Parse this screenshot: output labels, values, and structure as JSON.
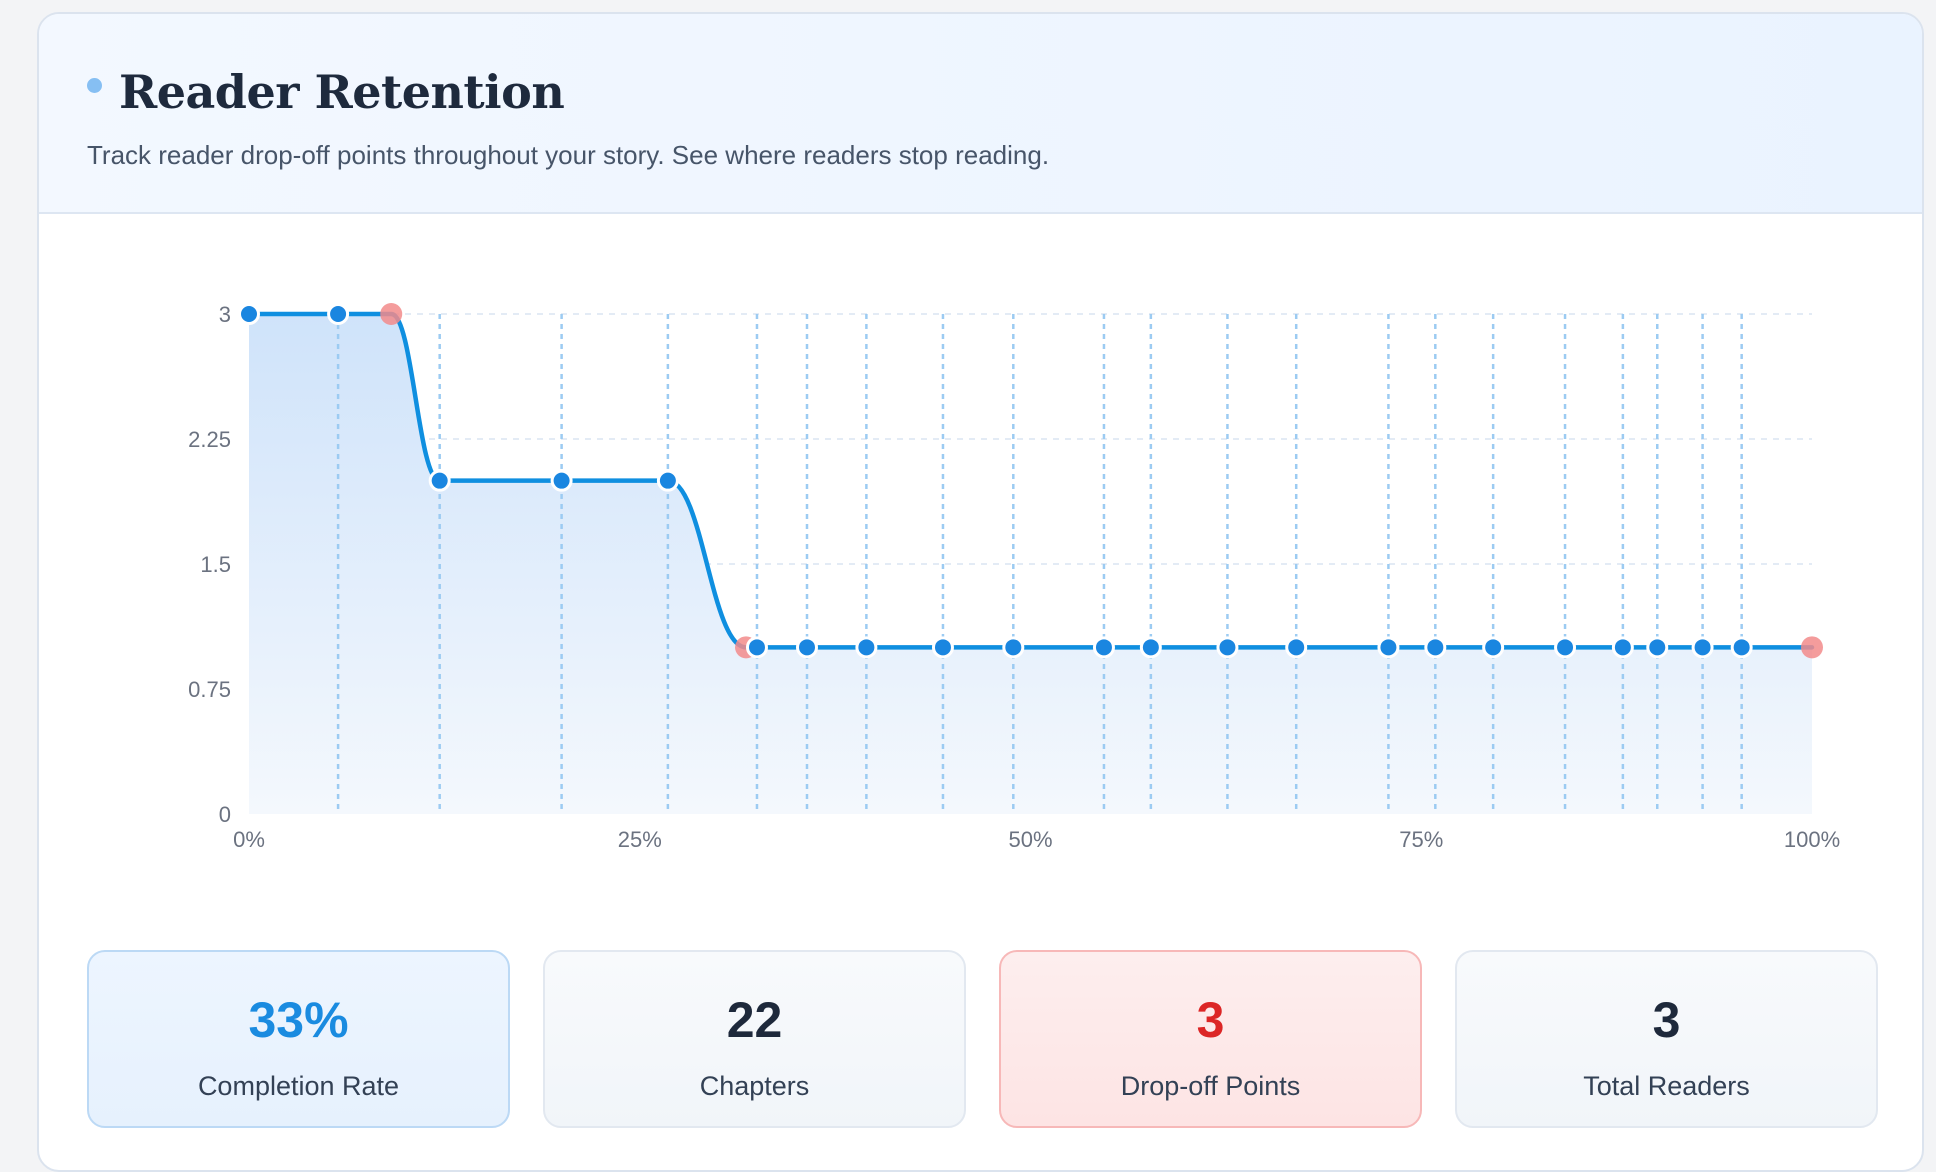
{
  "header": {
    "title": "Reader Retention",
    "subtitle": "Track reader drop-off points throughout your story. See where readers stop reading."
  },
  "colors": {
    "accent": "#1a8be0",
    "line": "#0f8fe0",
    "dropoff": "#f28b8b",
    "area_top": "#cfe3fa",
    "area_bottom": "#f4f8fd",
    "title_dot": "#86bff3"
  },
  "chart_data": {
    "type": "area",
    "xlim": [
      0,
      100
    ],
    "ylim": [
      0,
      3
    ],
    "x_tick_labels": [
      "0%",
      "25%",
      "50%",
      "75%",
      "100%"
    ],
    "x_ticks": [
      0,
      25,
      50,
      75,
      100
    ],
    "y_tick_labels": [
      "0",
      "0.75",
      "1.5",
      "2.25",
      "3"
    ],
    "y_ticks": [
      0,
      0.75,
      1.5,
      2.25,
      3
    ],
    "grid": true,
    "points": [
      {
        "x": 0,
        "y": 3,
        "type": "chapter"
      },
      {
        "x": 5.7,
        "y": 3,
        "type": "chapter"
      },
      {
        "x": 9.1,
        "y": 3,
        "type": "dropoff"
      },
      {
        "x": 12.2,
        "y": 2,
        "type": "chapter"
      },
      {
        "x": 20,
        "y": 2,
        "type": "chapter"
      },
      {
        "x": 26.8,
        "y": 2,
        "type": "chapter"
      },
      {
        "x": 31.8,
        "y": 1,
        "type": "dropoff"
      },
      {
        "x": 32.5,
        "y": 1,
        "type": "chapter"
      },
      {
        "x": 35.7,
        "y": 1,
        "type": "chapter"
      },
      {
        "x": 39.5,
        "y": 1,
        "type": "chapter"
      },
      {
        "x": 44.4,
        "y": 1,
        "type": "chapter"
      },
      {
        "x": 48.9,
        "y": 1,
        "type": "chapter"
      },
      {
        "x": 54.7,
        "y": 1,
        "type": "chapter"
      },
      {
        "x": 57.7,
        "y": 1,
        "type": "chapter"
      },
      {
        "x": 62.6,
        "y": 1,
        "type": "chapter"
      },
      {
        "x": 67,
        "y": 1,
        "type": "chapter"
      },
      {
        "x": 72.9,
        "y": 1,
        "type": "chapter"
      },
      {
        "x": 75.9,
        "y": 1,
        "type": "chapter"
      },
      {
        "x": 79.6,
        "y": 1,
        "type": "chapter"
      },
      {
        "x": 84.2,
        "y": 1,
        "type": "chapter"
      },
      {
        "x": 87.9,
        "y": 1,
        "type": "chapter"
      },
      {
        "x": 90.1,
        "y": 1,
        "type": "chapter"
      },
      {
        "x": 93,
        "y": 1,
        "type": "chapter"
      },
      {
        "x": 95.5,
        "y": 1,
        "type": "chapter"
      },
      {
        "x": 100,
        "y": 1,
        "type": "dropoff"
      }
    ]
  },
  "stats": [
    {
      "value": "33%",
      "label": "Completion Rate",
      "variant": "blue"
    },
    {
      "value": "22",
      "label": "Chapters",
      "variant": "neutral"
    },
    {
      "value": "3",
      "label": "Drop-off Points",
      "variant": "red"
    },
    {
      "value": "3",
      "label": "Total Readers",
      "variant": "neutral"
    }
  ]
}
